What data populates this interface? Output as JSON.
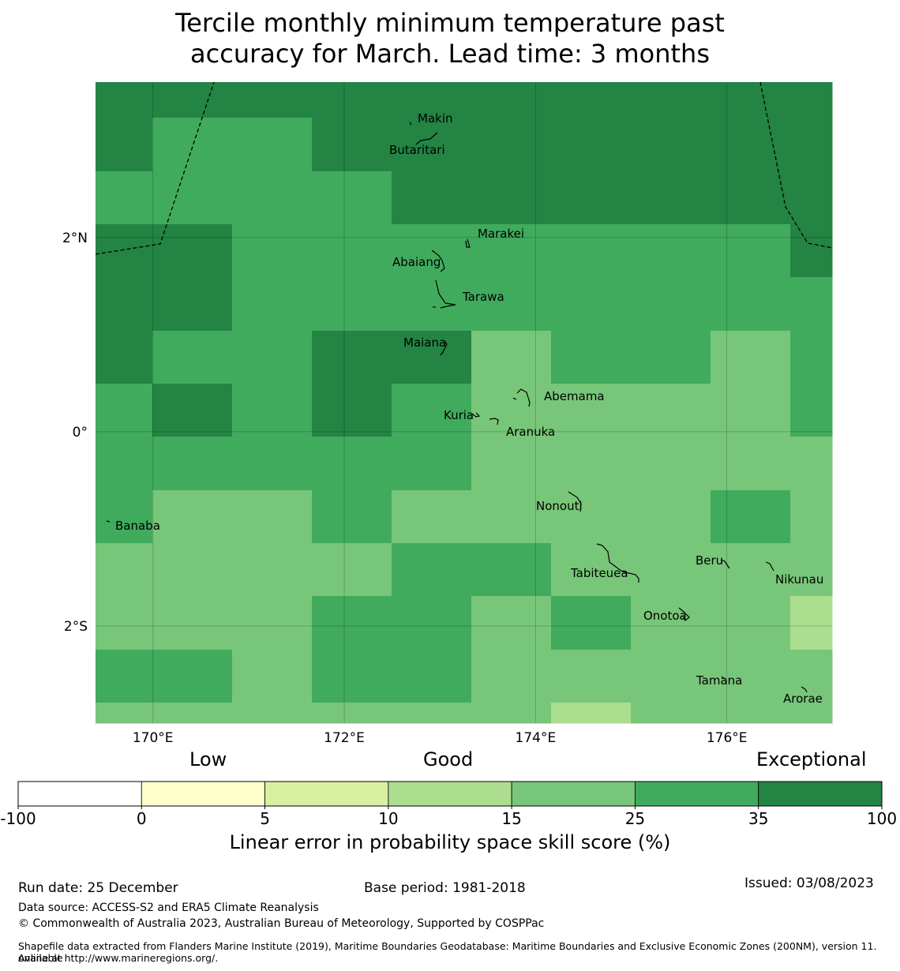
{
  "title_line1": "Tercile monthly minimum temperature past",
  "title_line2": "accuracy for March. Lead time: 3 months",
  "map": {
    "lon_range": [
      169.4,
      177.1
    ],
    "lat_range": [
      -3.0,
      3.6
    ],
    "lon_ticks": [
      {
        "value": 170,
        "label": "170°E"
      },
      {
        "value": 172,
        "label": "172°E"
      },
      {
        "value": 174,
        "label": "174°E"
      },
      {
        "value": 176,
        "label": "176°E"
      }
    ],
    "lat_ticks": [
      {
        "value": 2,
        "label": "2°N"
      },
      {
        "value": 0,
        "label": "0°"
      },
      {
        "value": -2,
        "label": "2°S"
      }
    ],
    "grid_rows_top_to_bottom": [
      [
        6,
        6,
        6,
        6,
        6,
        6,
        6,
        6,
        6,
        6
      ],
      [
        6,
        5,
        5,
        6,
        6,
        6,
        6,
        6,
        6,
        6
      ],
      [
        5,
        5,
        5,
        5,
        6,
        6,
        6,
        6,
        6,
        6
      ],
      [
        6,
        6,
        5,
        5,
        5,
        5,
        5,
        5,
        5,
        6
      ],
      [
        6,
        6,
        5,
        5,
        5,
        5,
        5,
        5,
        5,
        5
      ],
      [
        6,
        5,
        5,
        6,
        6,
        4,
        5,
        5,
        4,
        5
      ],
      [
        5,
        6,
        5,
        6,
        5,
        4,
        4,
        4,
        4,
        5
      ],
      [
        5,
        5,
        5,
        5,
        5,
        4,
        4,
        4,
        4,
        4
      ],
      [
        5,
        4,
        4,
        5,
        4,
        4,
        4,
        4,
        5,
        4
      ],
      [
        4,
        4,
        4,
        4,
        5,
        5,
        4,
        4,
        4,
        4
      ],
      [
        4,
        4,
        4,
        5,
        5,
        4,
        5,
        4,
        4,
        3
      ],
      [
        5,
        5,
        4,
        5,
        5,
        4,
        4,
        4,
        4,
        4
      ],
      [
        4,
        4,
        4,
        4,
        4,
        4,
        3,
        4,
        4,
        4
      ]
    ],
    "islands": [
      {
        "name": "Makin"
      },
      {
        "name": "Butaritari"
      },
      {
        "name": "Marakei"
      },
      {
        "name": "Abaiang"
      },
      {
        "name": "Tarawa"
      },
      {
        "name": "Maiana"
      },
      {
        "name": "Abemama"
      },
      {
        "name": "Kuria"
      },
      {
        "name": "Aranuka"
      },
      {
        "name": "Nonouti"
      },
      {
        "name": "Banaba"
      },
      {
        "name": "Beru"
      },
      {
        "name": "Tabiteuea"
      },
      {
        "name": "Nikunau"
      },
      {
        "name": "Onotoa"
      },
      {
        "name": "Tamana"
      },
      {
        "name": "Arorae"
      }
    ]
  },
  "colorbar": {
    "category_low": "Low",
    "category_good": "Good",
    "category_exceptional": "Exceptional",
    "bins": [
      {
        "from": "-100",
        "to": "0",
        "color": "#ffffff"
      },
      {
        "from": "0",
        "to": "5",
        "color": "#ffffcc"
      },
      {
        "from": "5",
        "to": "10",
        "color": "#d9f0a3"
      },
      {
        "from": "10",
        "to": "15",
        "color": "#addd8e"
      },
      {
        "from": "15",
        "to": "25",
        "color": "#78c679"
      },
      {
        "from": "25",
        "to": "35",
        "color": "#41ab5d"
      },
      {
        "from": "35",
        "to": "100",
        "color": "#238443"
      }
    ],
    "tick_labels": [
      "-100",
      "0",
      "5",
      "10",
      "15",
      "25",
      "35",
      "100"
    ],
    "label": "Linear error in probability space skill score (%)"
  },
  "footer": {
    "run_date": "Run date: 25 December",
    "base_period": "Base period: 1981-2018",
    "issued": "Issued: 03/08/2023",
    "data_source": "Data source: ACCESS-S2 and ERA5 Climate Reanalysis",
    "copyright": "© Commonwealth of Australia 2023, Australian Bureau of Meteorology, Supported by COSPPac",
    "shapefile_line1": "Shapefile data extracted from Flanders Marine Institute (2019), Maritime Boundaries Geodatabase: Maritime Boundaries and Exclusive Economic Zones (200NM), version 11. Available",
    "shapefile_line2": "online at http://www.marineregions.org/."
  }
}
